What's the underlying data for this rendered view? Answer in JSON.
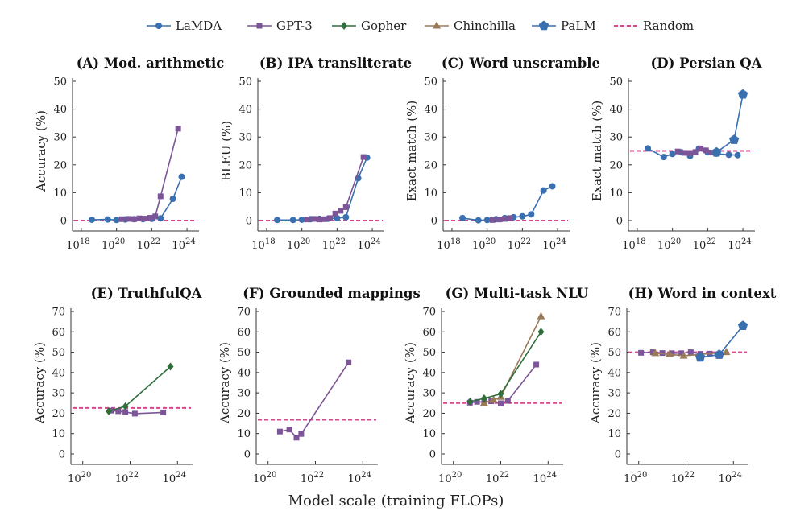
{
  "legend": [
    {
      "name": "LaMDA",
      "color": "#3a6fb0",
      "marker": "circle"
    },
    {
      "name": "GPT-3",
      "color": "#7b5597",
      "marker": "square"
    },
    {
      "name": "Gopher",
      "color": "#2f6e3a",
      "marker": "diamond"
    },
    {
      "name": "Chinchilla",
      "color": "#9b7a5a",
      "marker": "triangle"
    },
    {
      "name": "PaLM",
      "color": "#3a6fb0",
      "marker": "pentagon"
    },
    {
      "name": "Random",
      "color": "#d04a88",
      "marker": "dashed"
    }
  ],
  "figure_xlabel": "Model scale (training FLOPs)",
  "chart_data": [
    {
      "type": "line",
      "title": "(A) Mod. arithmetic",
      "ylabel": "Accuracy (%)",
      "ylim": [
        0,
        50
      ],
      "yticks": [
        0,
        10,
        20,
        30,
        40,
        50
      ],
      "xlim_log10": [
        17.5,
        24.5
      ],
      "xticks_log10": [
        18,
        20,
        22,
        24
      ],
      "random": 0,
      "series": [
        {
          "name": "LaMDA",
          "x_log10": [
            18.6,
            19.5,
            20.0,
            20.5,
            21.0,
            21.5,
            22.0,
            22.5,
            23.2,
            23.7
          ],
          "y": [
            0.3,
            0.4,
            0.2,
            0.4,
            0.5,
            0.5,
            0.6,
            0.8,
            7.8,
            15.7
          ]
        },
        {
          "name": "GPT-3",
          "x_log10": [
            20.3,
            20.7,
            21.0,
            21.3,
            21.6,
            21.9,
            22.2,
            22.5,
            23.5
          ],
          "y": [
            0.5,
            0.6,
            0.5,
            0.8,
            0.7,
            1.0,
            1.5,
            8.7,
            33.0
          ]
        }
      ]
    },
    {
      "type": "line",
      "title": "(B) IPA transliterate",
      "ylabel": "BLEU (%)",
      "ylim": [
        0,
        50
      ],
      "yticks": [
        0,
        10,
        20,
        30,
        40,
        50
      ],
      "xlim_log10": [
        17.5,
        24.5
      ],
      "xticks_log10": [
        18,
        20,
        22,
        24
      ],
      "random": 0,
      "series": [
        {
          "name": "LaMDA",
          "x_log10": [
            18.6,
            19.5,
            20.0,
            20.5,
            21.0,
            21.5,
            22.0,
            22.5,
            23.2,
            23.7
          ],
          "y": [
            0.2,
            0.2,
            0.3,
            0.5,
            0.6,
            0.7,
            0.9,
            1.2,
            15.2,
            22.6
          ]
        },
        {
          "name": "GPT-3",
          "x_log10": [
            20.3,
            20.7,
            21.0,
            21.3,
            21.6,
            21.9,
            22.2,
            22.5,
            23.5
          ],
          "y": [
            0.4,
            0.6,
            0.4,
            0.5,
            0.9,
            2.5,
            3.5,
            4.8,
            22.8
          ]
        }
      ]
    },
    {
      "type": "line",
      "title": "(C) Word unscramble",
      "ylabel": "Exact match (%)",
      "ylim": [
        0,
        50
      ],
      "yticks": [
        0,
        10,
        20,
        30,
        40,
        50
      ],
      "xlim_log10": [
        17.5,
        24.5
      ],
      "xticks_log10": [
        18,
        20,
        22,
        24
      ],
      "random": 0,
      "series": [
        {
          "name": "LaMDA",
          "x_log10": [
            18.6,
            19.5,
            20.0,
            20.5,
            21.0,
            21.5,
            22.0,
            22.5,
            23.2,
            23.7
          ],
          "y": [
            0.9,
            0.1,
            0.2,
            0.5,
            0.9,
            1.2,
            1.5,
            2.2,
            10.8,
            12.3
          ]
        },
        {
          "name": "GPT-3",
          "x_log10": [
            20.3,
            20.7,
            21.0,
            21.3
          ],
          "y": [
            0.2,
            0.4,
            0.6,
            0.9
          ]
        }
      ]
    },
    {
      "type": "line",
      "title": "(D) Persian QA",
      "ylabel": "Exact match (%)",
      "ylim": [
        0,
        50
      ],
      "yticks": [
        0,
        10,
        20,
        30,
        40,
        50
      ],
      "xlim_log10": [
        17.5,
        24.5
      ],
      "xticks_log10": [
        18,
        20,
        22,
        24
      ],
      "random": 25,
      "series": [
        {
          "name": "LaMDA",
          "x_log10": [
            18.6,
            19.5,
            20.0,
            20.5,
            21.0,
            21.5,
            22.0,
            22.5,
            23.2,
            23.7
          ],
          "y": [
            25.9,
            22.8,
            23.9,
            24.5,
            23.2,
            25.8,
            24.5,
            24.0,
            23.6,
            23.5
          ]
        },
        {
          "name": "GPT-3",
          "x_log10": [
            20.3,
            20.7,
            21.0,
            21.3,
            21.6,
            21.9,
            22.2,
            22.5
          ],
          "y": [
            24.8,
            24.3,
            24.2,
            24.6,
            25.9,
            25.2,
            24.4,
            24.7
          ]
        },
        {
          "name": "PaLM",
          "x_log10": [
            22.5,
            23.5,
            24.0
          ],
          "y": [
            24.5,
            29.0,
            45.3
          ]
        }
      ]
    },
    {
      "type": "line",
      "title": "(E) TruthfulQA",
      "ylabel": "Accuracy (%)",
      "ylim": [
        0,
        70
      ],
      "yticks": [
        0,
        10,
        20,
        30,
        40,
        50,
        60,
        70
      ],
      "xlim_log10": [
        19.5,
        24.5
      ],
      "xticks_log10": [
        20,
        22,
        24
      ],
      "random": 22.6,
      "series": [
        {
          "name": "GPT-3",
          "x_log10": [
            21.2,
            21.5,
            21.8,
            22.2,
            23.4
          ],
          "y": [
            21.3,
            21.0,
            20.6,
            19.8,
            20.4
          ]
        },
        {
          "name": "Gopher",
          "x_log10": [
            21.1,
            21.8,
            23.7
          ],
          "y": [
            21.0,
            23.4,
            42.9
          ]
        }
      ]
    },
    {
      "type": "line",
      "title": "(F) Grounded mappings",
      "ylabel": "Accuracy (%)",
      "ylim": [
        0,
        70
      ],
      "yticks": [
        0,
        10,
        20,
        30,
        40,
        50,
        60,
        70
      ],
      "xlim_log10": [
        19.5,
        24.5
      ],
      "xticks_log10": [
        20,
        22,
        24
      ],
      "random": 16.8,
      "series": [
        {
          "name": "GPT-3",
          "x_log10": [
            20.5,
            20.9,
            21.2,
            21.4,
            23.4
          ],
          "y": [
            11.0,
            12.0,
            8.0,
            9.8,
            45.0
          ]
        }
      ]
    },
    {
      "type": "line",
      "title": "(G) Multi-task NLU",
      "ylabel": "Accuracy (%)",
      "ylim": [
        0,
        70
      ],
      "yticks": [
        0,
        10,
        20,
        30,
        40,
        50,
        60,
        70
      ],
      "xlim_log10": [
        19.5,
        24.5
      ],
      "xticks_log10": [
        20,
        22,
        24
      ],
      "random": 25,
      "series": [
        {
          "name": "GPT-3",
          "x_log10": [
            20.7,
            21.0,
            21.3,
            21.6,
            22.0,
            22.3,
            23.5
          ],
          "y": [
            25.2,
            25.6,
            25.5,
            25.9,
            24.9,
            26.1,
            43.9
          ]
        },
        {
          "name": "Chinchilla",
          "x_log10": [
            21.3,
            21.7,
            22.0,
            23.7
          ],
          "y": [
            25.0,
            26.5,
            28.0,
            67.6
          ]
        },
        {
          "name": "Gopher",
          "x_log10": [
            20.7,
            21.3,
            22.0,
            23.7
          ],
          "y": [
            25.7,
            27.3,
            29.5,
            60.0
          ]
        }
      ]
    },
    {
      "type": "line",
      "title": "(H) Word in context",
      "ylabel": "Accuracy (%)",
      "ylim": [
        0,
        70
      ],
      "yticks": [
        0,
        10,
        20,
        30,
        40,
        50,
        60,
        70
      ],
      "xlim_log10": [
        19.5,
        24.5
      ],
      "xticks_log10": [
        20,
        22,
        24
      ],
      "random": 50,
      "series": [
        {
          "name": "GPT-3",
          "x_log10": [
            20.1,
            20.6,
            21.0,
            21.4,
            21.8,
            22.2,
            22.6,
            23.0
          ],
          "y": [
            49.7,
            50.0,
            49.6,
            49.5,
            49.5,
            50.0,
            49.2,
            49.3
          ]
        },
        {
          "name": "Chinchilla",
          "x_log10": [
            20.7,
            21.3,
            21.9,
            23.7
          ],
          "y": [
            49.5,
            49.0,
            48.2,
            50.0
          ]
        },
        {
          "name": "PaLM",
          "x_log10": [
            22.6,
            23.4,
            24.4
          ],
          "y": [
            47.5,
            48.8,
            63.0
          ]
        }
      ]
    }
  ]
}
